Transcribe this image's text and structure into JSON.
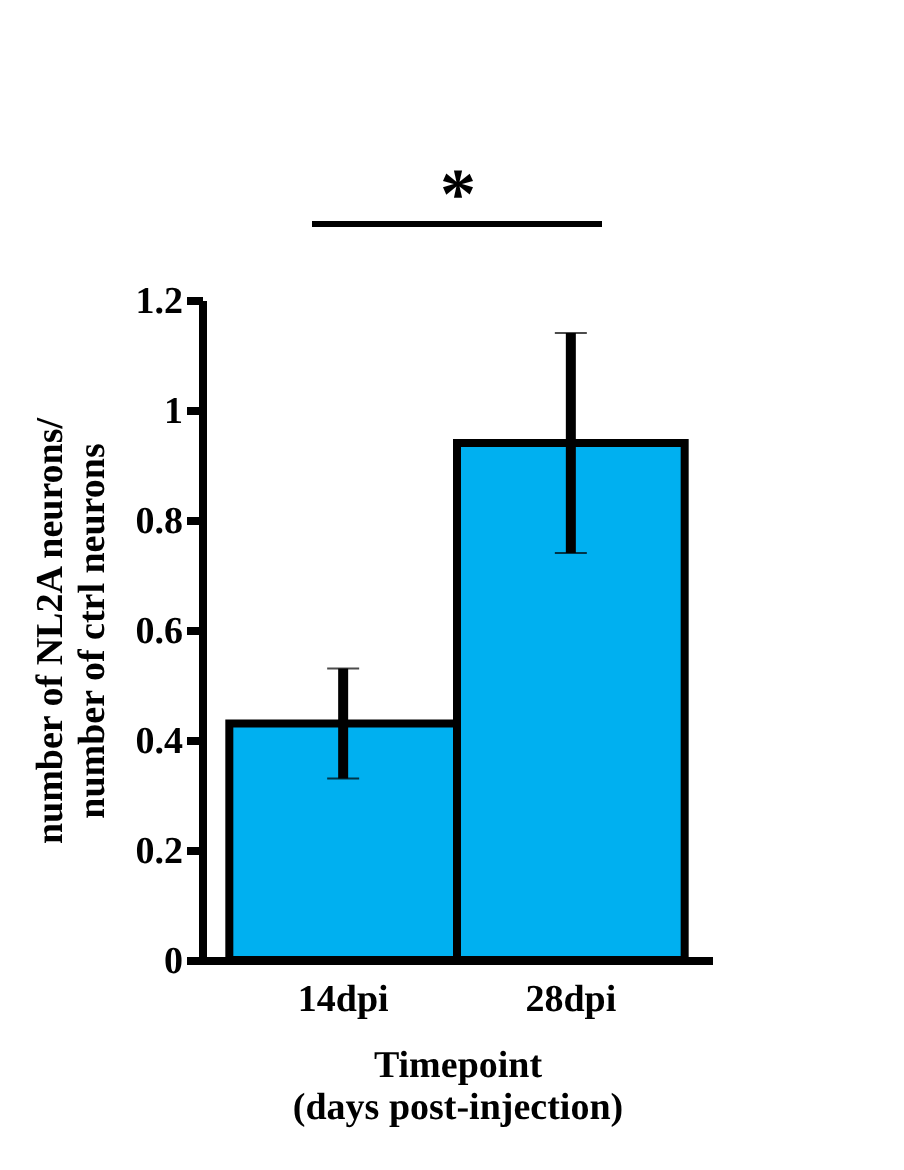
{
  "chart_data": {
    "type": "bar",
    "categories": [
      "14dpi",
      "28dpi"
    ],
    "values": [
      0.43,
      0.94
    ],
    "errors": [
      0.1,
      0.2
    ],
    "color": "#00b0f0",
    "ylim": [
      0,
      1.2
    ],
    "yticks": [
      0,
      0.2,
      0.4,
      0.6,
      0.8,
      1,
      1.2
    ],
    "xlabel": "Timepoint\n(days post-injection)",
    "ylabel": "number of NL2A neurons/\nnumber of ctrl neurons",
    "annotations": [
      "*"
    ],
    "grid": false
  }
}
